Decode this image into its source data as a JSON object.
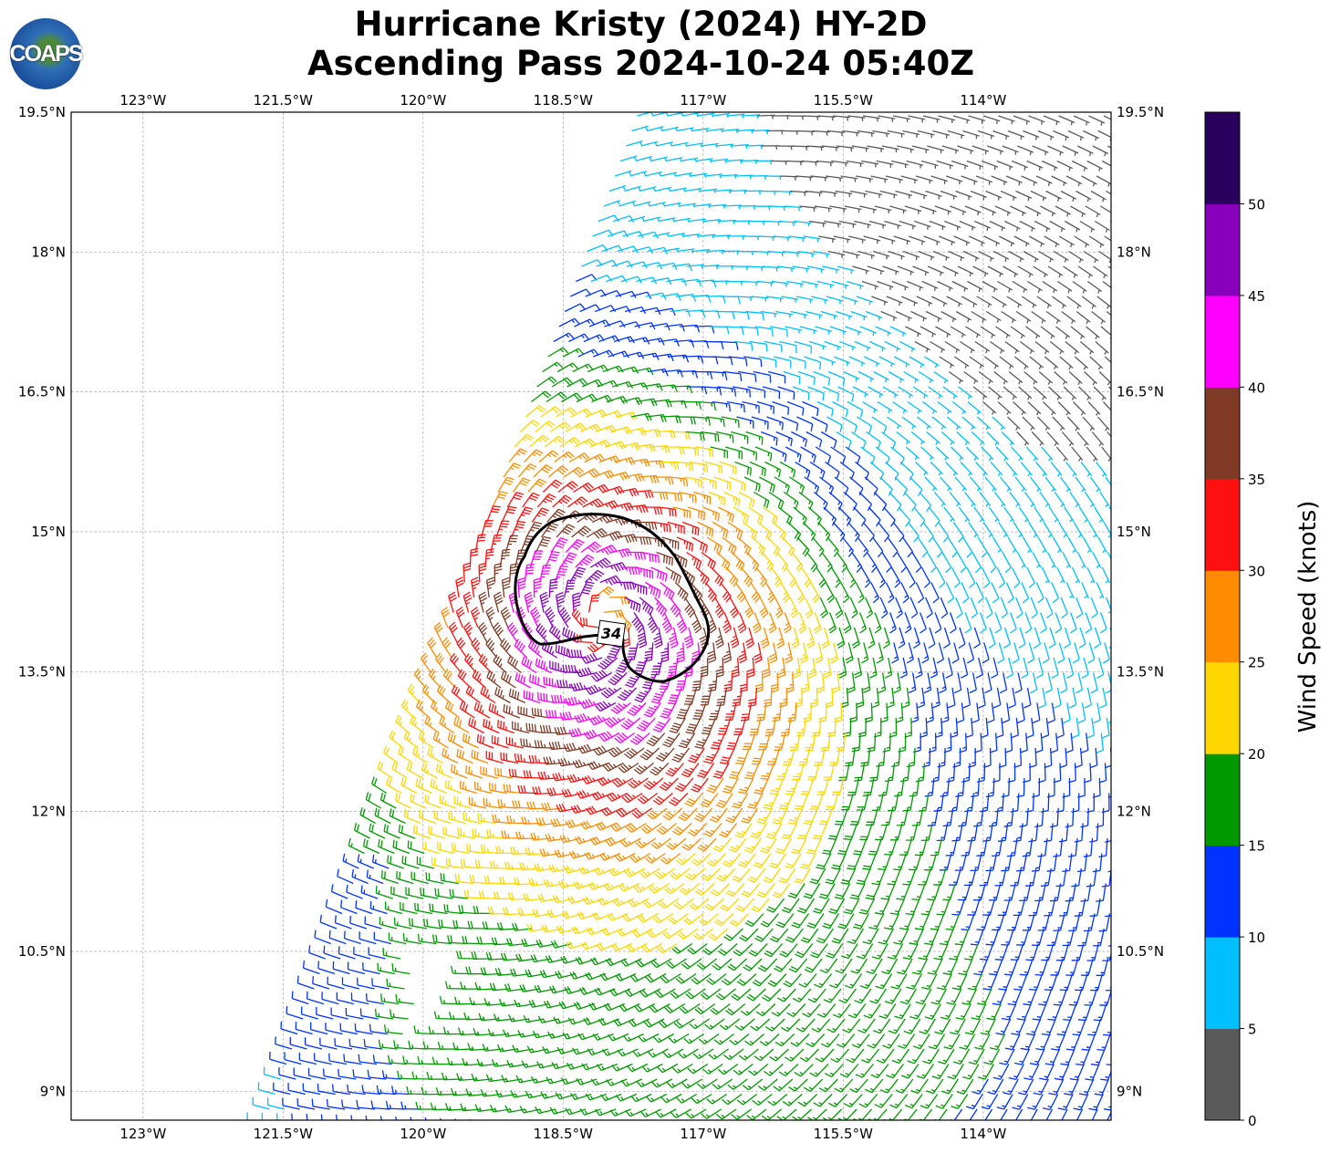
{
  "title": {
    "line1": "Hurricane Kristy (2024) HY-2D",
    "line2": "Ascending Pass 2024-10-24 05:40Z"
  },
  "logo": {
    "text": "COAPS"
  },
  "map": {
    "lon_extent": [
      -123.77,
      -112.63
    ],
    "lat_extent": [
      8.69,
      19.5
    ],
    "lon_ticks": [
      {
        "value": -123,
        "label": "123°W"
      },
      {
        "value": -121.5,
        "label": "121.5°W"
      },
      {
        "value": -120,
        "label": "120°W"
      },
      {
        "value": -118.5,
        "label": "118.5°W"
      },
      {
        "value": -117,
        "label": "117°W"
      },
      {
        "value": -115.5,
        "label": "115.5°W"
      },
      {
        "value": -114,
        "label": "114°W"
      }
    ],
    "lat_ticks": [
      {
        "value": 19.5,
        "label": "19.5°N"
      },
      {
        "value": 18,
        "label": "18°N"
      },
      {
        "value": 16.5,
        "label": "16.5°N"
      },
      {
        "value": 15,
        "label": "15°N"
      },
      {
        "value": 13.5,
        "label": "13.5°N"
      },
      {
        "value": 12,
        "label": "12°N"
      },
      {
        "value": 10.5,
        "label": "10.5°N"
      },
      {
        "value": 9,
        "label": "9°N"
      }
    ],
    "gridlines": true,
    "storm_center": {
      "lon": -118.08,
      "lat": 14.05
    },
    "contour_label": "34",
    "barb_units": "knots"
  },
  "colorbar": {
    "label": "Wind Speed (knots)",
    "ticks": [
      "0",
      "5",
      "10",
      "15",
      "20",
      "25",
      "30",
      "35",
      "40",
      "45",
      "50"
    ],
    "bins": [
      {
        "min": 0,
        "max": 5,
        "color": "#5a5a5a"
      },
      {
        "min": 5,
        "max": 10,
        "color": "#00bfff"
      },
      {
        "min": 10,
        "max": 15,
        "color": "#0033ff"
      },
      {
        "min": 15,
        "max": 20,
        "color": "#009900"
      },
      {
        "min": 20,
        "max": 25,
        "color": "#ffd700"
      },
      {
        "min": 25,
        "max": 30,
        "color": "#ff8c00"
      },
      {
        "min": 30,
        "max": 35,
        "color": "#ff1010"
      },
      {
        "min": 35,
        "max": 40,
        "color": "#803a26"
      },
      {
        "min": 40,
        "max": 45,
        "color": "#ff00ff"
      },
      {
        "min": 45,
        "max": 50,
        "color": "#8800bb"
      },
      {
        "min": 50,
        "max": 55,
        "color": "#2a005f"
      }
    ]
  }
}
